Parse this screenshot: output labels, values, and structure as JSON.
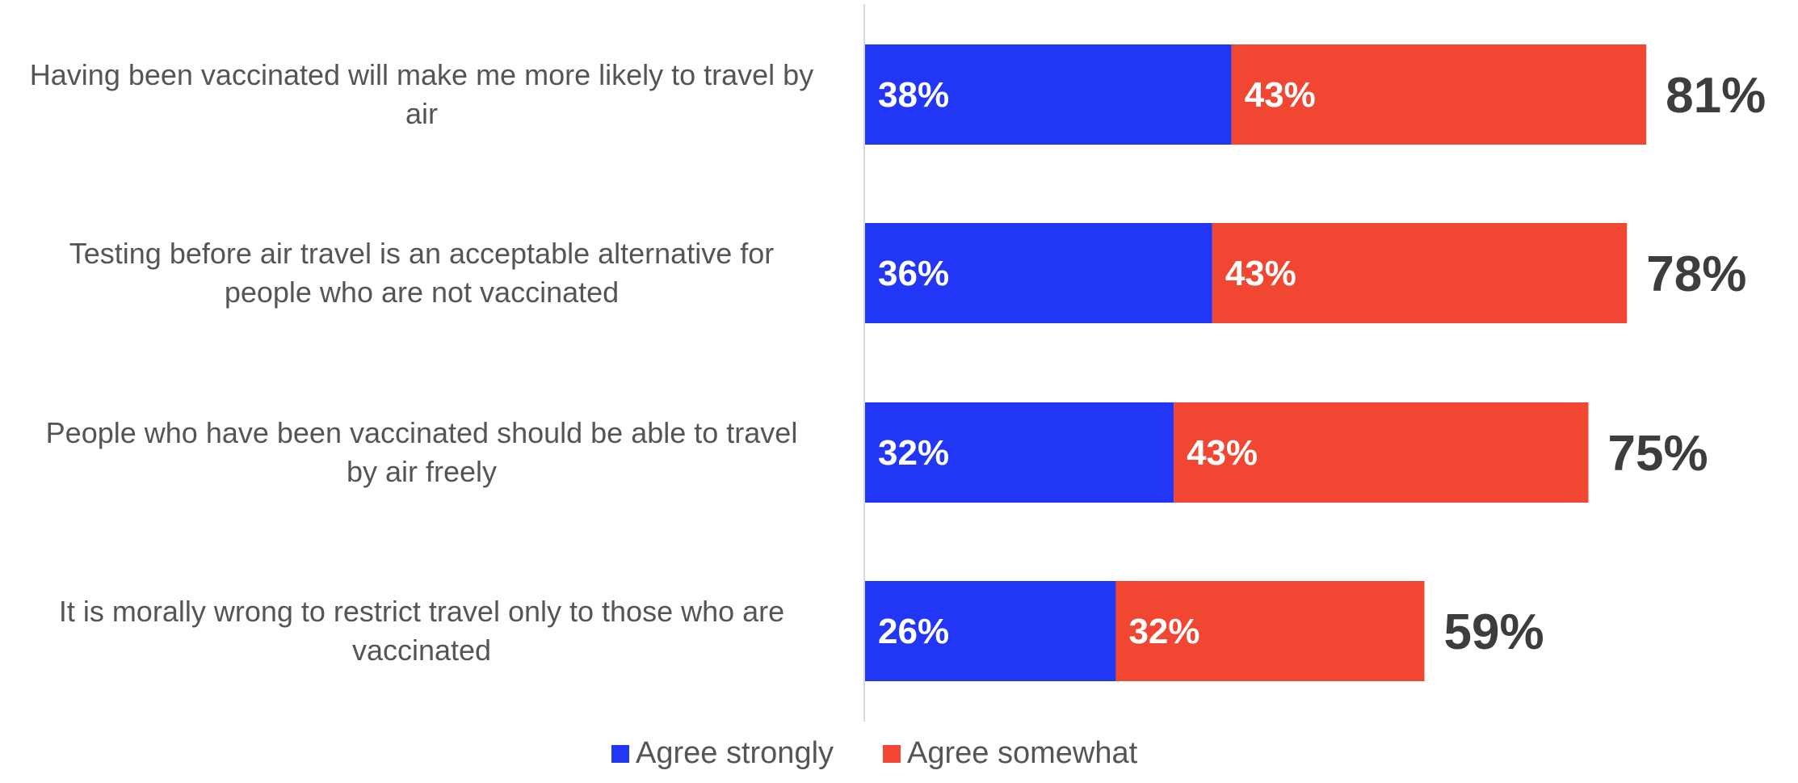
{
  "chart_data": {
    "type": "bar",
    "orientation": "horizontal",
    "stacked": true,
    "categories": [
      "Having been vaccinated will make me more likely to travel by air",
      "Testing before air travel is an acceptable alternative for people who are not vaccinated",
      "People who have been vaccinated should be able to travel by air freely",
      "It is morally wrong to restrict travel only to those who are vaccinated"
    ],
    "category_lines": [
      [
        "Having been vaccinated will make me more likely to travel by",
        "air"
      ],
      [
        "Testing before air travel is an acceptable alternative for",
        "people who are not vaccinated"
      ],
      [
        "People who have been vaccinated should be able to travel",
        "by air freely"
      ],
      [
        "It is morally wrong to restrict travel only to those who are",
        "vaccinated"
      ]
    ],
    "series": [
      {
        "name": "Agree strongly",
        "color": "#2236f5",
        "values": [
          38,
          36,
          32,
          26
        ],
        "labels": [
          "38%",
          "36%",
          "32%",
          "26%"
        ]
      },
      {
        "name": "Agree somewhat",
        "color": "#f04632",
        "values": [
          43,
          43,
          43,
          32
        ],
        "labels": [
          "43%",
          "43%",
          "43%",
          "32%"
        ]
      }
    ],
    "totals": [
      "81%",
      "78%",
      "75%",
      "59%"
    ],
    "xlim": [
      0,
      100
    ],
    "grid": false,
    "legend_position": "bottom-center",
    "title": "",
    "xlabel": "",
    "ylabel": ""
  }
}
